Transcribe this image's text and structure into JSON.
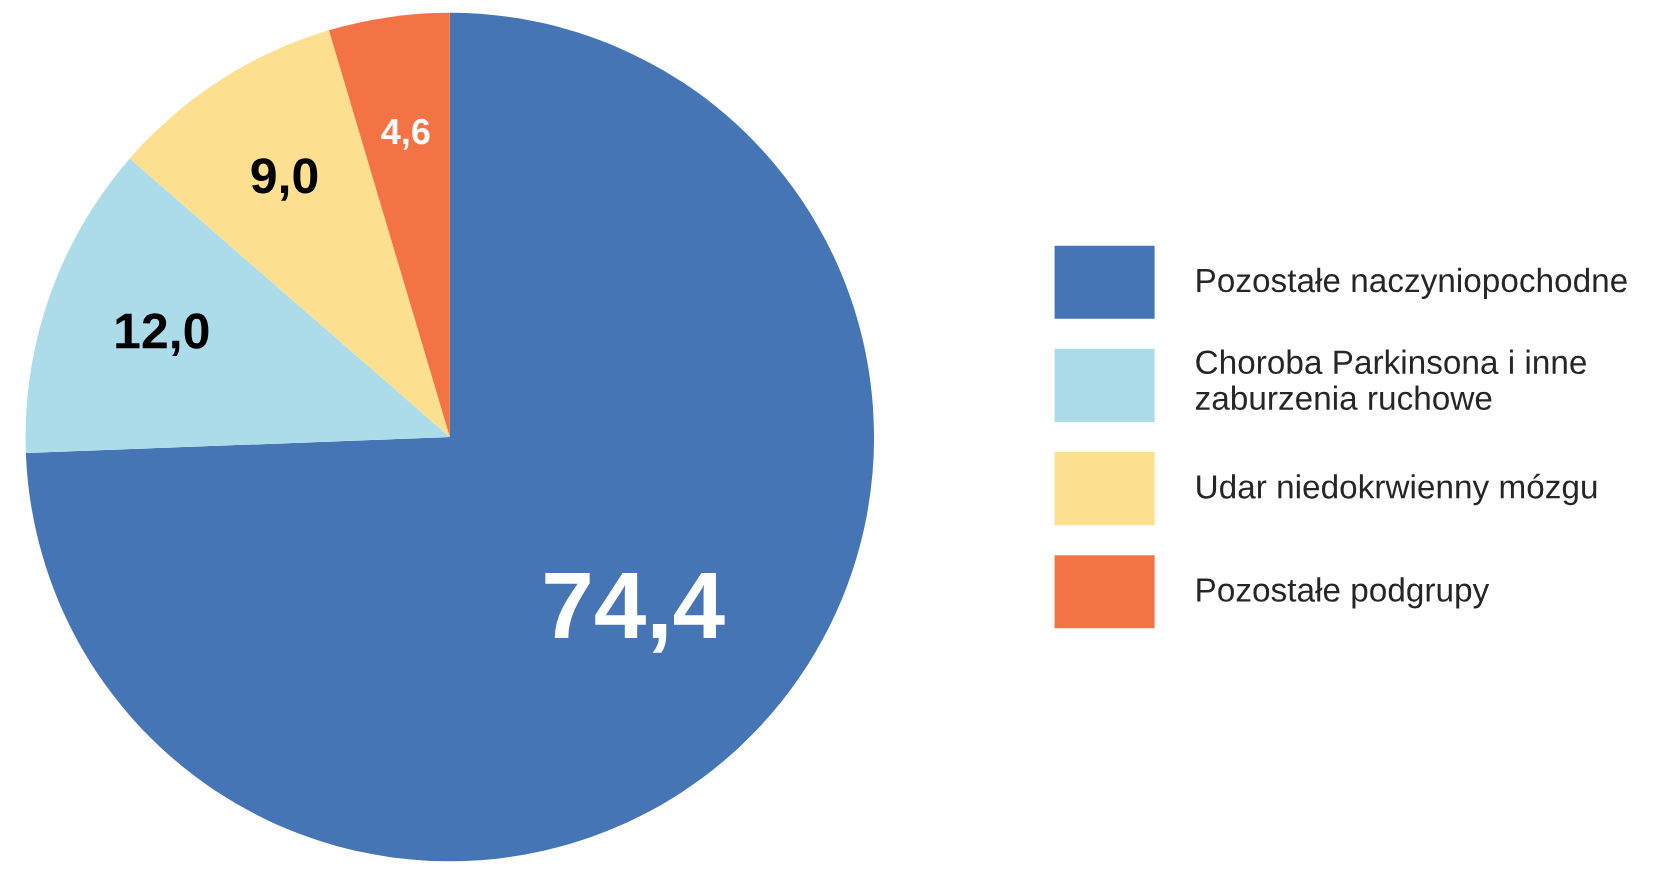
{
  "chart_data": {
    "type": "pie",
    "categories": [
      "Pozostałe naczyniopochodne",
      "Choroba Parkinsona i inne\nzaburzenia ruchowe",
      "Udar niedokrwienny mózgu",
      "Pozostałe podgrupy"
    ],
    "values": [
      74.4,
      12.0,
      9.0,
      4.6
    ],
    "colors": [
      "#4675b6",
      "#acdbe9",
      "#fde08f",
      "#f47345"
    ],
    "value_labels": [
      "74,4",
      "12,0",
      "9,0",
      "4,6"
    ],
    "legend": "right"
  }
}
